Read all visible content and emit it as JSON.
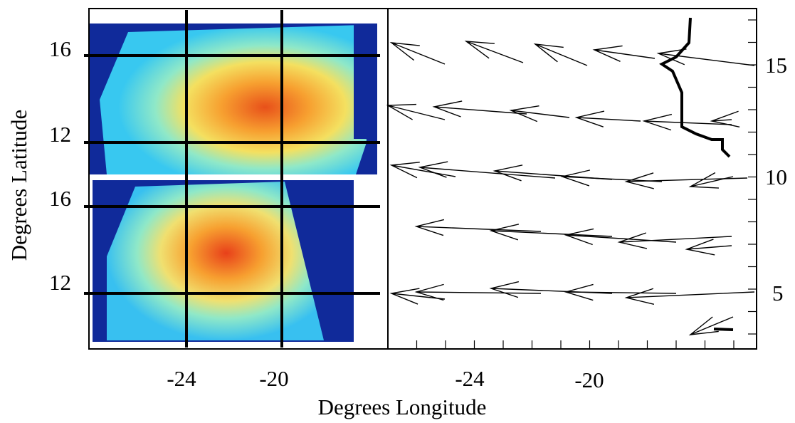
{
  "figure": {
    "x_label": "Degrees Longitude",
    "y_label": "Degrees Latitude",
    "left_panel": {
      "top_yticks": [
        "16",
        "12"
      ],
      "bottom_yticks": [
        "16",
        "12"
      ],
      "xticks": [
        "-24",
        "-20"
      ]
    },
    "right_panel": {
      "yticks": [
        "15",
        "10",
        "5"
      ],
      "xticks": [
        "-24",
        "-20"
      ]
    }
  }
}
